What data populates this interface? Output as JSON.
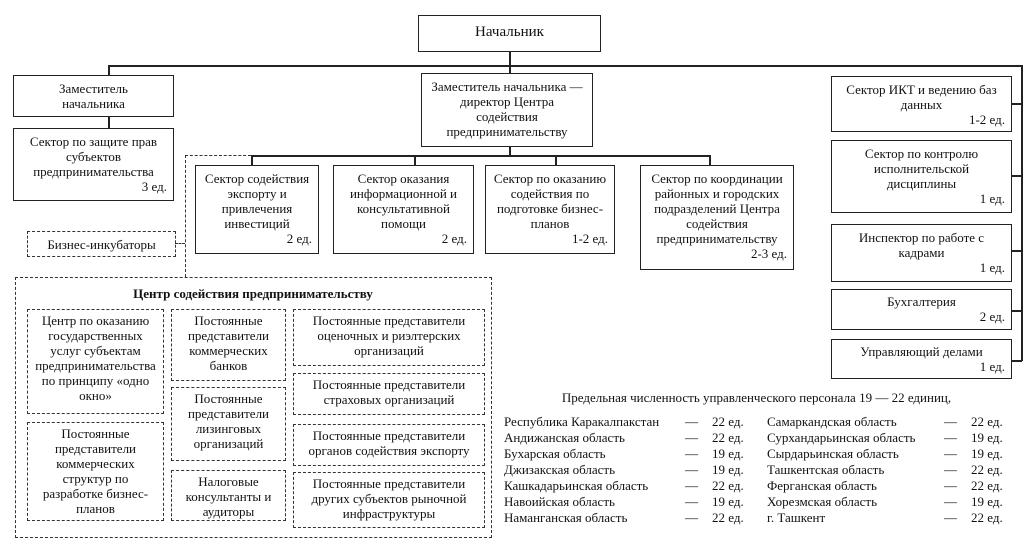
{
  "chief": {
    "title": "Начальник"
  },
  "deputy": {
    "title": "Заместитель начальника"
  },
  "protection_sector": {
    "title": "Сектор по защите прав субъектов предпринимательства",
    "units": "3 ед."
  },
  "deputy_director": {
    "title": "Заместитель начальника — директор Центра содействия предпринимательству"
  },
  "sectors": [
    {
      "title": "Сектор содействия экспорту и привлечения инвестиций",
      "units": "2 ед."
    },
    {
      "title": "Сектор оказания информационной и консультативной помощи",
      "units": "2 ед."
    },
    {
      "title": "Сектор по оказанию содействия по подготовке бизнес-планов",
      "units": "1-2 ед."
    },
    {
      "title": "Сектор по координации районных и городских подразделений Центра содействия предпринимательству",
      "units": "2-3 ед."
    }
  ],
  "right_units": [
    {
      "title": "Сектор ИКТ и ведению баз данных",
      "units": "1-2 ед."
    },
    {
      "title": "Сектор по контролю исполнительской дисциплины",
      "units": "1 ед."
    },
    {
      "title": "Инспектор по работе с кадрами",
      "units": "1 ед."
    },
    {
      "title": "Бухгалтерия",
      "units": "2 ед."
    },
    {
      "title": "Управляющий делами",
      "units": "1 ед."
    }
  ],
  "incubators": {
    "title": "Бизнес-инкубаторы"
  },
  "center": {
    "title": "Центр содействия предпринимательству",
    "items": [
      "Центр по оказанию государственных услуг субъектам предпринимательства по принципу «одно окно»",
      "Постоянные представители коммерческих структур по разработке бизнес-планов",
      "Постоянные представители коммерческих банков",
      "Постоянные представители лизинговых организаций",
      "Налоговые консультанты и аудиторы",
      "Постоянные представители оценочных и риэлтерских организаций",
      "Постоянные представители страховых организаций",
      "Постоянные представители органов содействия экспорту",
      "Постоянные представители других субъектов рыночной инфраструктуры"
    ]
  },
  "limit_text": "Предельная численность управленческого персонала 19 — 22 единиц,",
  "dash": "—",
  "regions_left": [
    {
      "name": "Республика Каракалпакстан",
      "value": "22 ед."
    },
    {
      "name": "Андижанская область",
      "value": "22 ед."
    },
    {
      "name": "Бухарская область",
      "value": "19 ед."
    },
    {
      "name": "Джизакская область",
      "value": "19 ед."
    },
    {
      "name": "Кашкадарьинская область",
      "value": "22 ед."
    },
    {
      "name": "Навоийская область",
      "value": "19 ед."
    },
    {
      "name": "Наманганская область",
      "value": "22 ед."
    }
  ],
  "regions_right": [
    {
      "name": "Самаркандская область",
      "value": "22 ед."
    },
    {
      "name": "Сурхандарьинская область",
      "value": "19 ед."
    },
    {
      "name": "Сырдарьинская область",
      "value": "19 ед."
    },
    {
      "name": "Ташкентская область",
      "value": "22 ед."
    },
    {
      "name": "Ферганская область",
      "value": "22 ед."
    },
    {
      "name": "Хорезмская область",
      "value": "19 ед."
    },
    {
      "name": "г. Ташкент",
      "value": "22 ед."
    }
  ]
}
